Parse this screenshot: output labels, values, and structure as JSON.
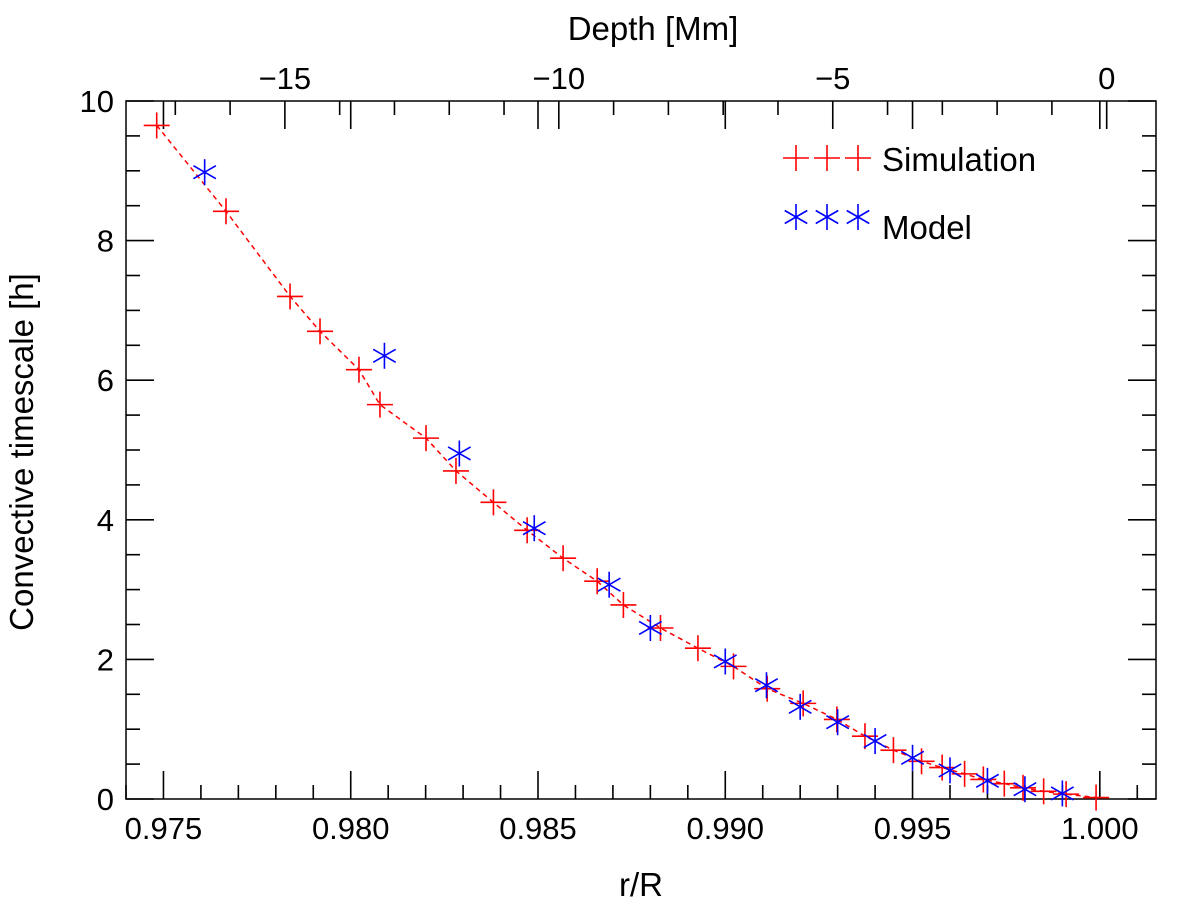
{
  "chart_data": {
    "type": "scatter",
    "xlabel": "r/R",
    "ylabel": "Convective timescale [h]",
    "top_xlabel": "Depth [Mm]",
    "xlim": [
      0.974,
      1.0015
    ],
    "ylim": [
      0,
      10
    ],
    "top_xlim": [
      -17.9,
      0.9
    ],
    "x_ticks": [
      0.975,
      0.98,
      0.985,
      0.99,
      0.995,
      1.0
    ],
    "x_tick_labels": [
      "0.975",
      "0.980",
      "0.985",
      "0.990",
      "0.995",
      "1.000"
    ],
    "y_ticks": [
      0,
      2,
      4,
      6,
      8,
      10
    ],
    "y_tick_labels": [
      "0",
      "2",
      "4",
      "6",
      "8",
      "10"
    ],
    "top_ticks": [
      -15,
      -10,
      -5,
      0
    ],
    "top_tick_labels": [
      "−15",
      "−10",
      "−5",
      "0"
    ],
    "legend_position": "top-right",
    "grid": false,
    "series": [
      {
        "name": "Simulation",
        "color": "#ff0000",
        "marker": "plus",
        "line": "dashed",
        "x": [
          0.97482,
          0.97667,
          0.97838,
          0.97918,
          0.98022,
          0.98078,
          0.98201,
          0.98281,
          0.98381,
          0.98471,
          0.98567,
          0.98658,
          0.98728,
          0.98827,
          0.98927,
          0.99022,
          0.99112,
          0.99208,
          0.99298,
          0.99373,
          0.99449,
          0.99524,
          0.99579,
          0.99639,
          0.99689,
          0.99745,
          0.99795,
          0.9985,
          0.9991,
          0.9999
        ],
        "y": [
          9.65,
          8.42,
          7.2,
          6.7,
          6.15,
          5.65,
          5.17,
          4.7,
          4.25,
          3.85,
          3.45,
          3.12,
          2.78,
          2.45,
          2.16,
          1.9,
          1.58,
          1.37,
          1.14,
          0.9,
          0.7,
          0.54,
          0.45,
          0.36,
          0.28,
          0.22,
          0.16,
          0.11,
          0.07,
          0.02
        ]
      },
      {
        "name": "Model",
        "color": "#0000ff",
        "marker": "asterisk",
        "line": "none",
        "x": [
          0.9761,
          0.9809,
          0.9829,
          0.9849,
          0.9869,
          0.988,
          0.99,
          0.9911,
          0.992,
          0.993,
          0.994,
          0.995,
          0.996,
          0.997,
          0.998,
          0.999
        ],
        "y": [
          8.98,
          6.35,
          4.95,
          3.88,
          3.07,
          2.45,
          1.97,
          1.63,
          1.32,
          1.1,
          0.83,
          0.59,
          0.41,
          0.26,
          0.14,
          0.08
        ]
      }
    ]
  }
}
